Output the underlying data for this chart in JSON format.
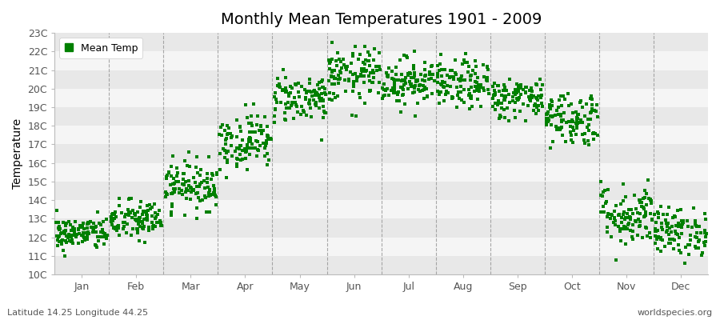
{
  "title": "Monthly Mean Temperatures 1901 - 2009",
  "ylabel": "Temperature",
  "subtitle_left": "Latitude 14.25 Longitude 44.25",
  "subtitle_right": "worldspecies.org",
  "legend_label": "Mean Temp",
  "ylim": [
    10,
    23
  ],
  "ytick_labels": [
    "10C",
    "11C",
    "12C",
    "13C",
    "14C",
    "15C",
    "16C",
    "17C",
    "18C",
    "19C",
    "20C",
    "21C",
    "22C",
    "23C"
  ],
  "ytick_values": [
    10,
    11,
    12,
    13,
    14,
    15,
    16,
    17,
    18,
    19,
    20,
    21,
    22,
    23
  ],
  "months": [
    "Jan",
    "Feb",
    "Mar",
    "Apr",
    "May",
    "Jun",
    "Jul",
    "Aug",
    "Sep",
    "Oct",
    "Nov",
    "Dec"
  ],
  "dot_color": "#008000",
  "bg_color": "#ffffff",
  "plot_bg": "#f5f5f5",
  "stripe_color": "#e8e8e8",
  "stripe_alt_color": "#f5f5f5",
  "monthly_means": [
    12.2,
    12.9,
    14.8,
    17.2,
    19.5,
    20.7,
    20.4,
    20.2,
    19.5,
    18.4,
    13.2,
    12.3
  ],
  "monthly_stds": [
    0.45,
    0.55,
    0.65,
    0.75,
    0.65,
    0.75,
    0.65,
    0.65,
    0.55,
    0.75,
    0.85,
    0.65
  ],
  "n_years": 109,
  "dot_size": 5,
  "title_fontsize": 14,
  "axis_fontsize": 9,
  "label_fontsize": 10
}
